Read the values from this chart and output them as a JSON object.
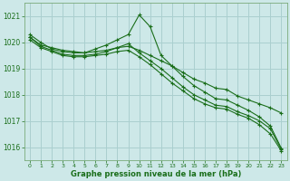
{
  "xlabel": "Graphe pression niveau de la mer (hPa)",
  "background_color": "#cde8e8",
  "grid_color": "#aacfcf",
  "line_color": "#1a6e1a",
  "text_color": "#1a6e1a",
  "spine_color": "#7aaa7a",
  "xlim": [
    -0.5,
    23.5
  ],
  "ylim": [
    1015.5,
    1021.5
  ],
  "yticks": [
    1016,
    1017,
    1018,
    1019,
    1020,
    1021
  ],
  "xticks": [
    0,
    1,
    2,
    3,
    4,
    5,
    6,
    7,
    8,
    9,
    10,
    11,
    12,
    13,
    14,
    15,
    16,
    17,
    18,
    19,
    20,
    21,
    22,
    23
  ],
  "series": [
    {
      "x": [
        0,
        1,
        2,
        3,
        4,
        5,
        6,
        7,
        8,
        9,
        10,
        11,
        12,
        13,
        14,
        15,
        16,
        17,
        18,
        19,
        20,
        21,
        22,
        23
      ],
      "y": [
        1020.2,
        1019.9,
        1019.8,
        1019.7,
        1019.65,
        1019.6,
        1019.65,
        1019.7,
        1019.8,
        1019.85,
        1019.7,
        1019.5,
        1019.3,
        1019.1,
        1018.85,
        1018.6,
        1018.45,
        1018.25,
        1018.2,
        1017.95,
        1017.8,
        1017.65,
        1017.5,
        1017.3
      ]
    },
    {
      "x": [
        0,
        1,
        2,
        3,
        4,
        5,
        6,
        7,
        8,
        9,
        10,
        11,
        12,
        13,
        14,
        15,
        16,
        17,
        18,
        19,
        20,
        21,
        22,
        23
      ],
      "y": [
        1020.3,
        1020.0,
        1019.75,
        1019.65,
        1019.6,
        1019.6,
        1019.75,
        1019.9,
        1020.1,
        1020.3,
        1021.05,
        1020.6,
        1019.5,
        1019.1,
        1018.7,
        1018.35,
        1018.1,
        1017.85,
        1017.8,
        1017.6,
        1017.4,
        1017.15,
        1016.8,
        1015.95
      ]
    },
    {
      "x": [
        0,
        1,
        2,
        3,
        4,
        5,
        6,
        7,
        8,
        9,
        10,
        11,
        12,
        13,
        14,
        15,
        16,
        17,
        18,
        19,
        20,
        21,
        22,
        23
      ],
      "y": [
        1020.2,
        1019.85,
        1019.7,
        1019.55,
        1019.5,
        1019.5,
        1019.55,
        1019.65,
        1019.8,
        1019.95,
        1019.6,
        1019.3,
        1019.0,
        1018.65,
        1018.3,
        1018.0,
        1017.8,
        1017.6,
        1017.55,
        1017.35,
        1017.2,
        1017.0,
        1016.7,
        1015.9
      ]
    },
    {
      "x": [
        0,
        1,
        2,
        3,
        4,
        5,
        6,
        7,
        8,
        9,
        10,
        11,
        12,
        13,
        14,
        15,
        16,
        17,
        18,
        19,
        20,
        21,
        22,
        23
      ],
      "y": [
        1020.1,
        1019.8,
        1019.65,
        1019.5,
        1019.45,
        1019.45,
        1019.5,
        1019.55,
        1019.65,
        1019.7,
        1019.45,
        1019.15,
        1018.8,
        1018.45,
        1018.15,
        1017.85,
        1017.65,
        1017.5,
        1017.45,
        1017.25,
        1017.1,
        1016.85,
        1016.5,
        1015.85
      ]
    }
  ]
}
